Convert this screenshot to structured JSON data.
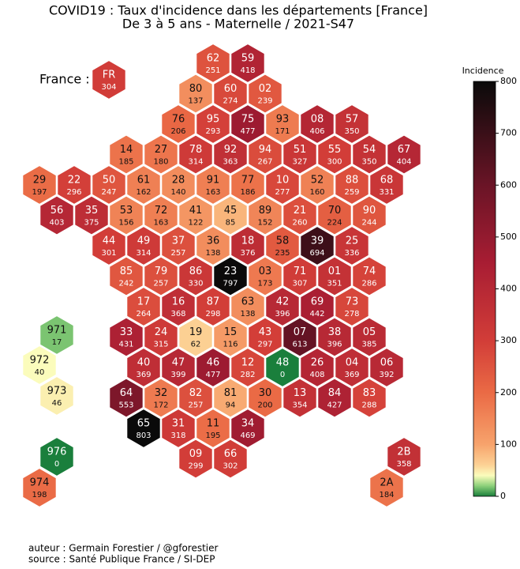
{
  "chart_data": {
    "type": "hexmap",
    "title": "COVID19 : Taux d'incidence dans les départements [France]",
    "subtitle": "De 3 à 5 ans - Maternelle / 2021-S47",
    "france": {
      "label": "France :",
      "code": "FR",
      "value": 304
    },
    "departments": [
      {
        "code": "62",
        "value": 251
      },
      {
        "code": "59",
        "value": 418
      },
      {
        "code": "80",
        "value": 137
      },
      {
        "code": "60",
        "value": 274
      },
      {
        "code": "02",
        "value": 239
      },
      {
        "code": "76",
        "value": 206
      },
      {
        "code": "95",
        "value": 293
      },
      {
        "code": "75",
        "value": 477
      },
      {
        "code": "93",
        "value": 171
      },
      {
        "code": "08",
        "value": 406
      },
      {
        "code": "57",
        "value": 350
      },
      {
        "code": "14",
        "value": 185
      },
      {
        "code": "27",
        "value": 180
      },
      {
        "code": "78",
        "value": 314
      },
      {
        "code": "92",
        "value": 363
      },
      {
        "code": "94",
        "value": 267
      },
      {
        "code": "51",
        "value": 327
      },
      {
        "code": "55",
        "value": 300
      },
      {
        "code": "54",
        "value": 350
      },
      {
        "code": "67",
        "value": 404
      },
      {
        "code": "29",
        "value": 197
      },
      {
        "code": "22",
        "value": 296
      },
      {
        "code": "50",
        "value": 247
      },
      {
        "code": "61",
        "value": 162
      },
      {
        "code": "28",
        "value": 140
      },
      {
        "code": "91",
        "value": 163
      },
      {
        "code": "77",
        "value": 186
      },
      {
        "code": "10",
        "value": 277
      },
      {
        "code": "52",
        "value": 160
      },
      {
        "code": "88",
        "value": 259
      },
      {
        "code": "68",
        "value": 331
      },
      {
        "code": "56",
        "value": 403
      },
      {
        "code": "35",
        "value": 375
      },
      {
        "code": "53",
        "value": 156
      },
      {
        "code": "72",
        "value": 163
      },
      {
        "code": "41",
        "value": 122
      },
      {
        "code": "45",
        "value": 85
      },
      {
        "code": "89",
        "value": 152
      },
      {
        "code": "21",
        "value": 260
      },
      {
        "code": "70",
        "value": 224
      },
      {
        "code": "90",
        "value": 244
      },
      {
        "code": "44",
        "value": 301
      },
      {
        "code": "49",
        "value": 314
      },
      {
        "code": "37",
        "value": 257
      },
      {
        "code": "36",
        "value": 138
      },
      {
        "code": "18",
        "value": 376
      },
      {
        "code": "58",
        "value": 235
      },
      {
        "code": "39",
        "value": 694
      },
      {
        "code": "25",
        "value": 336
      },
      {
        "code": "85",
        "value": 242
      },
      {
        "code": "79",
        "value": 257
      },
      {
        "code": "86",
        "value": 330
      },
      {
        "code": "23",
        "value": 797
      },
      {
        "code": "03",
        "value": 173
      },
      {
        "code": "71",
        "value": 307
      },
      {
        "code": "01",
        "value": 351
      },
      {
        "code": "74",
        "value": 286
      },
      {
        "code": "17",
        "value": 264
      },
      {
        "code": "16",
        "value": 368
      },
      {
        "code": "87",
        "value": 298
      },
      {
        "code": "63",
        "value": 138
      },
      {
        "code": "42",
        "value": 396
      },
      {
        "code": "69",
        "value": 442
      },
      {
        "code": "73",
        "value": 278
      },
      {
        "code": "33",
        "value": 431
      },
      {
        "code": "24",
        "value": 315
      },
      {
        "code": "19",
        "value": 62
      },
      {
        "code": "15",
        "value": 116
      },
      {
        "code": "43",
        "value": 297
      },
      {
        "code": "07",
        "value": 613
      },
      {
        "code": "38",
        "value": 396
      },
      {
        "code": "05",
        "value": 385
      },
      {
        "code": "40",
        "value": 369
      },
      {
        "code": "47",
        "value": 399
      },
      {
        "code": "46",
        "value": 477
      },
      {
        "code": "12",
        "value": 282
      },
      {
        "code": "48",
        "value": 0
      },
      {
        "code": "26",
        "value": 408
      },
      {
        "code": "04",
        "value": 369
      },
      {
        "code": "06",
        "value": 392
      },
      {
        "code": "64",
        "value": 553
      },
      {
        "code": "32",
        "value": 172
      },
      {
        "code": "82",
        "value": 257
      },
      {
        "code": "81",
        "value": 94
      },
      {
        "code": "30",
        "value": 200
      },
      {
        "code": "13",
        "value": 354
      },
      {
        "code": "84",
        "value": 427
      },
      {
        "code": "83",
        "value": 288
      },
      {
        "code": "65",
        "value": 803
      },
      {
        "code": "31",
        "value": 318
      },
      {
        "code": "11",
        "value": 195
      },
      {
        "code": "34",
        "value": 469
      },
      {
        "code": "09",
        "value": 299
      },
      {
        "code": "66",
        "value": 302
      },
      {
        "code": "971",
        "value": 17
      },
      {
        "code": "972",
        "value": 40
      },
      {
        "code": "973",
        "value": 46
      },
      {
        "code": "976",
        "value": 0
      },
      {
        "code": "974",
        "value": 198
      },
      {
        "code": "2B",
        "value": 358
      },
      {
        "code": "2A",
        "value": 184
      }
    ],
    "colorbar": {
      "label": "Incidence",
      "lim": [
        0,
        800
      ],
      "ticks": [
        0,
        100,
        200,
        300,
        400,
        500,
        600,
        700,
        800
      ]
    },
    "colorscale": [
      [
        0,
        "#1a7f3c"
      ],
      [
        20,
        "#8cd07a"
      ],
      [
        40,
        "#fbfcbc"
      ],
      [
        60,
        "#fcd295"
      ],
      [
        100,
        "#f7a36c"
      ],
      [
        200,
        "#ea6a45"
      ],
      [
        300,
        "#d23d38"
      ],
      [
        450,
        "#a81d33"
      ],
      [
        600,
        "#6a1426"
      ],
      [
        800,
        "#0a0a0a"
      ]
    ],
    "footer": [
      "auteur : Germain Forestier / @gforestier",
      "source : Santé Publique France / SI-DEP"
    ]
  }
}
